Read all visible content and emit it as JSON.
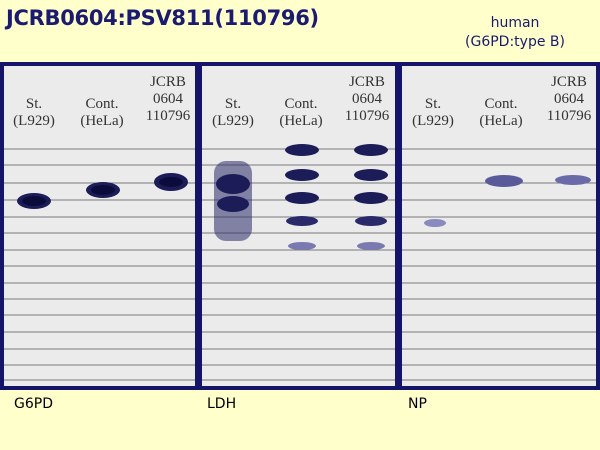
{
  "title": "JCRB0604:PSV811(110796)",
  "species": {
    "line1": "human",
    "line2": "(G6PD:type B)"
  },
  "panels": [
    {
      "footer": "G6PD",
      "lanes": [
        {
          "lines": [
            "St.",
            "(L929)"
          ]
        },
        {
          "lines": [
            "Cont.",
            "(HeLa)"
          ]
        },
        {
          "lines": [
            "JCRB",
            "0604",
            "110796"
          ]
        }
      ]
    },
    {
      "footer": "LDH",
      "lanes": [
        {
          "lines": [
            "St.",
            "(L929)"
          ]
        },
        {
          "lines": [
            "Cont.",
            "(HeLa)"
          ]
        },
        {
          "lines": [
            "JCRB",
            "0604",
            "110796"
          ]
        }
      ]
    },
    {
      "footer": "NP",
      "lanes": [
        {
          "lines": [
            "St.",
            "(L929)"
          ]
        },
        {
          "lines": [
            "Cont.",
            "(HeLa)"
          ]
        },
        {
          "lines": [
            "JCRB",
            "0604",
            "110796"
          ]
        }
      ]
    }
  ],
  "colors": {
    "background": "#ffffcc",
    "frame": "#141469",
    "gel": "#ebebeb",
    "band": "#1c1c58"
  }
}
